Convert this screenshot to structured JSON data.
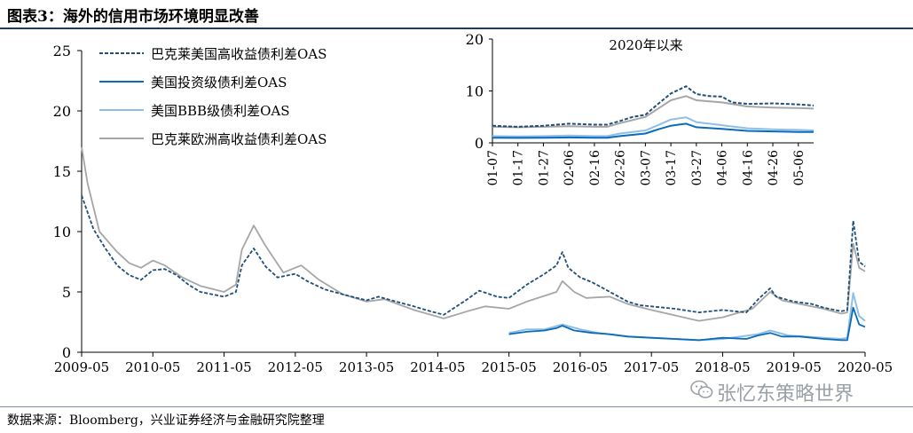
{
  "figure": {
    "title": "图表3：海外的信用市场环境明显改善",
    "source": "数据来源：Bloomberg，兴业证券经济与金融研究院整理",
    "watermark": "张忆东策略世界",
    "watermark_icon": "wechat-icon"
  },
  "colors": {
    "us_hy": "#1f4e79",
    "us_ig": "#0b6bb8",
    "us_bbb": "#8fbfe6",
    "eu_hy": "#a6a6a6",
    "title_rule": "#1a3a6c"
  },
  "chart_data": [
    {
      "type": "line",
      "title": "",
      "xlabel": "",
      "ylabel": "",
      "x_ticks": [
        "2009-05",
        "2010-05",
        "2011-05",
        "2012-05",
        "2013-05",
        "2014-05",
        "2015-05",
        "2016-05",
        "2017-05",
        "2018-05",
        "2019-05",
        "2020-05"
      ],
      "ylim": [
        0,
        25
      ],
      "y_ticks": [
        0,
        5,
        10,
        15,
        20,
        25
      ],
      "grid": false,
      "legend": "top-left",
      "series": [
        {
          "name": "巴克莱美国高收益债利差OAS",
          "style": "dashed",
          "points": [
            [
              "2009-05",
              13.0
            ],
            [
              "2009-07",
              10.2
            ],
            [
              "2009-09",
              8.6
            ],
            [
              "2009-11",
              7.2
            ],
            [
              "2010-01",
              6.4
            ],
            [
              "2010-03",
              6.0
            ],
            [
              "2010-05",
              6.8
            ],
            [
              "2010-07",
              6.9
            ],
            [
              "2010-09",
              6.4
            ],
            [
              "2010-11",
              5.6
            ],
            [
              "2011-01",
              5.0
            ],
            [
              "2011-03",
              4.8
            ],
            [
              "2011-05",
              4.6
            ],
            [
              "2011-07",
              5.0
            ],
            [
              "2011-08",
              7.2
            ],
            [
              "2011-10",
              8.6
            ],
            [
              "2011-12",
              7.1
            ],
            [
              "2012-02",
              6.2
            ],
            [
              "2012-05",
              6.5
            ],
            [
              "2012-07",
              5.9
            ],
            [
              "2012-10",
              5.2
            ],
            [
              "2013-01",
              4.8
            ],
            [
              "2013-05",
              4.3
            ],
            [
              "2013-07",
              4.6
            ],
            [
              "2013-10",
              4.2
            ],
            [
              "2014-01",
              3.8
            ],
            [
              "2014-03",
              3.5
            ],
            [
              "2014-06",
              3.1
            ],
            [
              "2014-10",
              4.4
            ],
            [
              "2014-12",
              5.1
            ],
            [
              "2015-03",
              4.6
            ],
            [
              "2015-05",
              4.5
            ],
            [
              "2015-08",
              5.6
            ],
            [
              "2015-11",
              6.5
            ],
            [
              "2016-01",
              7.2
            ],
            [
              "2016-02",
              8.3
            ],
            [
              "2016-03",
              7.0
            ],
            [
              "2016-05",
              6.2
            ],
            [
              "2016-07",
              5.8
            ],
            [
              "2016-10",
              5.0
            ],
            [
              "2017-01",
              4.2
            ],
            [
              "2017-03",
              3.9
            ],
            [
              "2017-05",
              3.8
            ],
            [
              "2017-09",
              3.6
            ],
            [
              "2018-01",
              3.3
            ],
            [
              "2018-05",
              3.5
            ],
            [
              "2018-09",
              3.3
            ],
            [
              "2018-11",
              4.4
            ],
            [
              "2019-01",
              5.3
            ],
            [
              "2019-02",
              4.6
            ],
            [
              "2019-05",
              4.2
            ],
            [
              "2019-08",
              4.0
            ],
            [
              "2019-10",
              3.7
            ],
            [
              "2020-01",
              3.4
            ],
            [
              "2020-02",
              3.5
            ],
            [
              "2020-03",
              10.9
            ],
            [
              "2020-04",
              7.5
            ],
            [
              "2020-05",
              7.1
            ]
          ]
        },
        {
          "name": "美国投资级债利差OAS",
          "style": "solid",
          "points": [
            [
              "2015-05",
              1.5
            ],
            [
              "2015-08",
              1.7
            ],
            [
              "2015-11",
              1.8
            ],
            [
              "2016-01",
              2.0
            ],
            [
              "2016-02",
              2.2
            ],
            [
              "2016-04",
              1.8
            ],
            [
              "2016-07",
              1.6
            ],
            [
              "2016-10",
              1.5
            ],
            [
              "2017-01",
              1.3
            ],
            [
              "2017-05",
              1.2
            ],
            [
              "2017-09",
              1.1
            ],
            [
              "2018-01",
              1.0
            ],
            [
              "2018-05",
              1.2
            ],
            [
              "2018-09",
              1.1
            ],
            [
              "2018-11",
              1.4
            ],
            [
              "2019-01",
              1.6
            ],
            [
              "2019-03",
              1.3
            ],
            [
              "2019-06",
              1.3
            ],
            [
              "2019-10",
              1.1
            ],
            [
              "2020-01",
              1.0
            ],
            [
              "2020-02",
              1.0
            ],
            [
              "2020-03",
              3.7
            ],
            [
              "2020-04",
              2.3
            ],
            [
              "2020-05",
              2.1
            ]
          ]
        },
        {
          "name": "美国BBB级债利差OAS",
          "style": "solid",
          "points": [
            [
              "2015-05",
              1.6
            ],
            [
              "2015-08",
              1.9
            ],
            [
              "2015-11",
              1.9
            ],
            [
              "2016-02",
              2.3
            ],
            [
              "2016-05",
              1.9
            ],
            [
              "2016-08",
              1.6
            ],
            [
              "2017-01",
              1.3
            ],
            [
              "2017-05",
              1.2
            ],
            [
              "2018-01",
              1.0
            ],
            [
              "2018-05",
              1.1
            ],
            [
              "2018-11",
              1.5
            ],
            [
              "2019-01",
              1.8
            ],
            [
              "2019-04",
              1.4
            ],
            [
              "2019-10",
              1.2
            ],
            [
              "2020-01",
              1.1
            ],
            [
              "2020-02",
              1.2
            ],
            [
              "2020-03",
              4.9
            ],
            [
              "2020-04",
              3.0
            ],
            [
              "2020-05",
              2.6
            ]
          ]
        },
        {
          "name": "巴克莱欧洲高收益债利差OAS",
          "style": "solid",
          "points": [
            [
              "2009-05",
              17.0
            ],
            [
              "2009-06",
              14.0
            ],
            [
              "2009-08",
              10.0
            ],
            [
              "2009-11",
              8.3
            ],
            [
              "2010-01",
              7.4
            ],
            [
              "2010-03",
              7.0
            ],
            [
              "2010-05",
              7.6
            ],
            [
              "2010-07",
              7.2
            ],
            [
              "2010-10",
              6.2
            ],
            [
              "2011-01",
              5.5
            ],
            [
              "2011-05",
              5.0
            ],
            [
              "2011-07",
              5.6
            ],
            [
              "2011-08",
              8.5
            ],
            [
              "2011-10",
              10.5
            ],
            [
              "2011-12",
              8.8
            ],
            [
              "2012-03",
              6.6
            ],
            [
              "2012-06",
              7.2
            ],
            [
              "2012-09",
              6.0
            ],
            [
              "2013-01",
              4.8
            ],
            [
              "2013-05",
              4.2
            ],
            [
              "2013-08",
              4.4
            ],
            [
              "2014-01",
              3.5
            ],
            [
              "2014-06",
              2.8
            ],
            [
              "2014-10",
              3.4
            ],
            [
              "2015-01",
              3.8
            ],
            [
              "2015-05",
              3.6
            ],
            [
              "2015-08",
              4.2
            ],
            [
              "2016-01",
              5.0
            ],
            [
              "2016-02",
              5.9
            ],
            [
              "2016-04",
              5.0
            ],
            [
              "2016-06",
              4.5
            ],
            [
              "2016-10",
              4.6
            ],
            [
              "2017-01",
              4.0
            ],
            [
              "2017-05",
              3.5
            ],
            [
              "2018-01",
              2.6
            ],
            [
              "2018-05",
              2.9
            ],
            [
              "2018-10",
              3.6
            ],
            [
              "2019-01",
              5.0
            ],
            [
              "2019-03",
              4.3
            ],
            [
              "2019-06",
              4.0
            ],
            [
              "2019-10",
              3.6
            ],
            [
              "2020-01",
              3.2
            ],
            [
              "2020-02",
              3.3
            ],
            [
              "2020-03",
              9.0
            ],
            [
              "2020-04",
              7.0
            ],
            [
              "2020-05",
              6.7
            ]
          ]
        }
      ]
    },
    {
      "type": "line",
      "title": "2020年以来",
      "xlabel": "",
      "ylabel": "",
      "x_ticks": [
        "01-07",
        "01-17",
        "01-27",
        "02-06",
        "02-16",
        "02-26",
        "03-07",
        "03-17",
        "03-27",
        "04-06",
        "04-16",
        "04-26",
        "05-06"
      ],
      "ylim": [
        0,
        20
      ],
      "y_ticks": [
        0,
        10,
        20
      ],
      "grid": false,
      "legend": "none",
      "series": [
        {
          "name": "巴克莱美国高收益债利差OAS",
          "style": "dashed",
          "points": [
            [
              "01-07",
              3.3
            ],
            [
              "01-17",
              3.1
            ],
            [
              "01-27",
              3.3
            ],
            [
              "02-06",
              3.7
            ],
            [
              "02-16",
              3.5
            ],
            [
              "02-21",
              3.5
            ],
            [
              "02-26",
              4.2
            ],
            [
              "03-02",
              5.0
            ],
            [
              "03-07",
              5.4
            ],
            [
              "03-12",
              7.5
            ],
            [
              "03-17",
              9.5
            ],
            [
              "03-23",
              10.9
            ],
            [
              "03-27",
              9.4
            ],
            [
              "04-01",
              9.0
            ],
            [
              "04-06",
              8.9
            ],
            [
              "04-10",
              7.8
            ],
            [
              "04-16",
              7.5
            ],
            [
              "04-26",
              7.6
            ],
            [
              "05-06",
              7.4
            ],
            [
              "05-12",
              7.2
            ]
          ]
        },
        {
          "name": "美国投资级债利差OAS",
          "style": "solid",
          "points": [
            [
              "01-07",
              1.0
            ],
            [
              "01-17",
              0.95
            ],
            [
              "01-27",
              1.0
            ],
            [
              "02-06",
              1.05
            ],
            [
              "02-16",
              1.0
            ],
            [
              "02-21",
              1.0
            ],
            [
              "02-26",
              1.3
            ],
            [
              "03-07",
              1.8
            ],
            [
              "03-12",
              2.6
            ],
            [
              "03-17",
              3.3
            ],
            [
              "03-23",
              3.7
            ],
            [
              "03-27",
              3.0
            ],
            [
              "04-06",
              2.7
            ],
            [
              "04-16",
              2.3
            ],
            [
              "04-26",
              2.2
            ],
            [
              "05-06",
              2.1
            ],
            [
              "05-12",
              2.1
            ]
          ]
        },
        {
          "name": "美国BBB级债利差OAS",
          "style": "solid",
          "points": [
            [
              "01-07",
              1.3
            ],
            [
              "01-17",
              1.25
            ],
            [
              "01-27",
              1.3
            ],
            [
              "02-06",
              1.4
            ],
            [
              "02-16",
              1.3
            ],
            [
              "02-21",
              1.3
            ],
            [
              "02-26",
              1.8
            ],
            [
              "03-07",
              2.4
            ],
            [
              "03-12",
              3.4
            ],
            [
              "03-17",
              4.5
            ],
            [
              "03-23",
              4.9
            ],
            [
              "03-27",
              4.0
            ],
            [
              "04-06",
              3.4
            ],
            [
              "04-16",
              2.8
            ],
            [
              "04-26",
              2.6
            ],
            [
              "05-06",
              2.5
            ],
            [
              "05-12",
              2.4
            ]
          ]
        },
        {
          "name": "巴克莱欧洲高收益债利差OAS",
          "style": "solid",
          "points": [
            [
              "01-07",
              3.1
            ],
            [
              "01-17",
              3.0
            ],
            [
              "01-27",
              3.1
            ],
            [
              "02-06",
              3.2
            ],
            [
              "02-16",
              3.1
            ],
            [
              "02-21",
              3.1
            ],
            [
              "02-26",
              3.8
            ],
            [
              "03-07",
              5.0
            ],
            [
              "03-12",
              6.6
            ],
            [
              "03-17",
              8.2
            ],
            [
              "03-23",
              9.0
            ],
            [
              "03-27",
              8.2
            ],
            [
              "04-06",
              7.8
            ],
            [
              "04-16",
              7.0
            ],
            [
              "04-26",
              6.8
            ],
            [
              "05-06",
              6.7
            ],
            [
              "05-12",
              6.6
            ]
          ]
        }
      ]
    }
  ]
}
